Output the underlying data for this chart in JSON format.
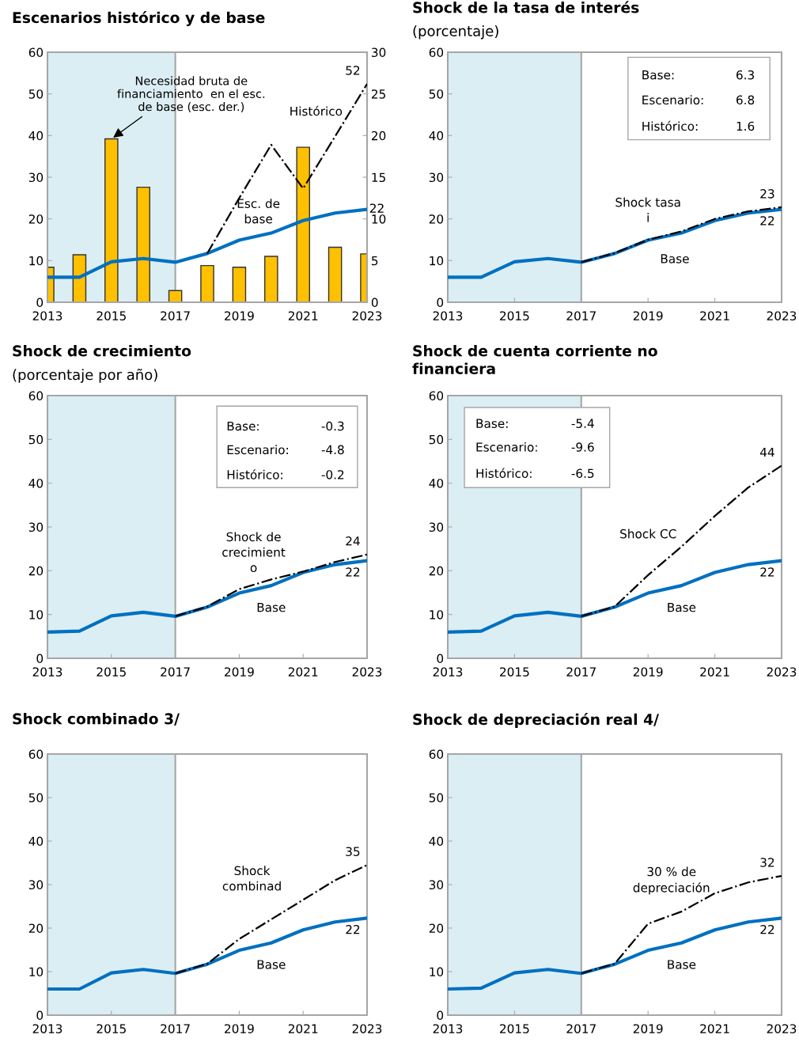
{
  "chart_data": [
    {
      "type": "line",
      "title": "Escenarios histórico y de base",
      "x": [
        2013,
        2014,
        2015,
        2016,
        2017,
        2018,
        2019,
        2020,
        2021,
        2022,
        2023
      ],
      "series": [
        {
          "type": "bar",
          "axis": "y2",
          "color": "#ffc000",
          "values": [
            4.2,
            5.7,
            19.6,
            13.8,
            1.4,
            4.4,
            4.2,
            5.5,
            18.6,
            6.6,
            5.8
          ]
        },
        {
          "color": "#0070c0",
          "line_style": "solid",
          "values": [
            6.0,
            6.0,
            9.7,
            10.5,
            9.6,
            11.7,
            14.9,
            16.6,
            19.6,
            21.4,
            22.3
          ],
          "value_labels": [
            null,
            null,
            null,
            null,
            null,
            null,
            null,
            null,
            null,
            null,
            "22"
          ]
        },
        {
          "color": "#000000",
          "line_style": "dashdot",
          "values": [
            null,
            null,
            null,
            null,
            null,
            11.7,
            25,
            37.8,
            27.3,
            39.8,
            52.4
          ],
          "value_labels": [
            null,
            null,
            null,
            null,
            null,
            null,
            null,
            null,
            null,
            null,
            "52"
          ]
        }
      ],
      "xlim": [
        2013,
        2023
      ],
      "xticks": [
        2013,
        2015,
        2017,
        2019,
        2021,
        2023
      ],
      "ylim": [
        0,
        60
      ],
      "yticks": [
        0,
        10,
        20,
        30,
        40,
        50,
        60
      ],
      "y2lim": [
        0,
        30
      ],
      "y2ticks": [
        0,
        5,
        10,
        15,
        20,
        25,
        30
      ],
      "bands": [
        {
          "axis": "x",
          "from": 2013,
          "to": 2017,
          "color": "#dbeef4"
        }
      ],
      "ref_lines": [
        {
          "axis": "x",
          "value": 2017,
          "color": "#a6a6a6"
        }
      ],
      "annotations": [
        {
          "text": "Necesidad bruta de\nfinanciamiento  en el esc.\nde base (esc. der.)",
          "x": 2015,
          "y": 39.2
        },
        "Histórico",
        "Esc. de\nbase"
      ]
    },
    {
      "type": "line",
      "title": "Shock de la tasa de interés",
      "subtitle": "(porcentaje)",
      "x": [
        2013,
        2014,
        2015,
        2016,
        2017,
        2018,
        2019,
        2020,
        2021,
        2022,
        2023
      ],
      "series": [
        {
          "color": "#0070c0",
          "line_style": "solid",
          "values": [
            6.0,
            6.0,
            9.7,
            10.5,
            9.6,
            11.7,
            14.9,
            16.6,
            19.6,
            21.4,
            22.3
          ],
          "value_labels": [
            null,
            null,
            null,
            null,
            null,
            null,
            null,
            null,
            null,
            null,
            "22"
          ]
        },
        {
          "color": "#000000",
          "line_style": "dashdot",
          "values": [
            null,
            null,
            null,
            null,
            9.6,
            11.8,
            15.0,
            17.0,
            20.0,
            21.8,
            22.8
          ],
          "value_labels": [
            null,
            null,
            null,
            null,
            null,
            null,
            null,
            null,
            null,
            null,
            "23"
          ]
        }
      ],
      "xlim": [
        2013,
        2023
      ],
      "xticks": [
        2013,
        2015,
        2017,
        2019,
        2021,
        2023
      ],
      "ylim": [
        0,
        60
      ],
      "yticks": [
        0,
        10,
        20,
        30,
        40,
        50,
        60
      ],
      "bands": [
        {
          "axis": "x",
          "from": 2013,
          "to": 2017,
          "color": "#dbeef4"
        }
      ],
      "ref_lines": [
        {
          "axis": "x",
          "value": 2017,
          "color": "#a6a6a6"
        }
      ],
      "annotations": [
        "Base:",
        "6.3",
        "Escenario:",
        "6.8",
        "Histórico:",
        "1.6",
        "Shock tasa\ni",
        "Base"
      ]
    },
    {
      "type": "line",
      "title": "Shock de crecimiento",
      "subtitle": "(porcentaje por año)",
      "x": [
        2013,
        2014,
        2015,
        2016,
        2017,
        2018,
        2019,
        2020,
        2021,
        2022,
        2023
      ],
      "series": [
        {
          "color": "#0070c0",
          "line_style": "solid",
          "values": [
            6.0,
            6.2,
            9.7,
            10.5,
            9.6,
            11.7,
            14.9,
            16.6,
            19.6,
            21.4,
            22.3
          ],
          "value_labels": [
            null,
            null,
            null,
            null,
            null,
            null,
            null,
            null,
            null,
            null,
            "22"
          ]
        },
        {
          "color": "#000000",
          "line_style": "dashdot",
          "values": [
            null,
            null,
            null,
            null,
            9.6,
            11.8,
            15.8,
            18.0,
            19.8,
            22.0,
            23.7
          ],
          "value_labels": [
            null,
            null,
            null,
            null,
            null,
            null,
            null,
            null,
            null,
            null,
            "24"
          ]
        }
      ],
      "xlim": [
        2013,
        2023
      ],
      "xticks": [
        2013,
        2015,
        2017,
        2019,
        2021,
        2023
      ],
      "ylim": [
        0,
        60
      ],
      "yticks": [
        0,
        10,
        20,
        30,
        40,
        50,
        60
      ],
      "bands": [
        {
          "axis": "x",
          "from": 2013,
          "to": 2017,
          "color": "#dbeef4"
        }
      ],
      "ref_lines": [
        {
          "axis": "x",
          "value": 2017,
          "color": "#a6a6a6"
        }
      ],
      "annotations": [
        "Base:",
        "-0.3",
        "Escenario:",
        "-4.8",
        "Histórico:",
        "-0.2",
        "Shock de\ncrecimient\no",
        "Base"
      ]
    },
    {
      "type": "line",
      "title": "Shock de cuenta corriente no\nfinanciera",
      "x": [
        2013,
        2014,
        2015,
        2016,
        2017,
        2018,
        2019,
        2020,
        2021,
        2022,
        2023
      ],
      "series": [
        {
          "color": "#0070c0",
          "line_style": "solid",
          "values": [
            6.0,
            6.2,
            9.7,
            10.5,
            9.6,
            11.7,
            14.9,
            16.6,
            19.6,
            21.4,
            22.3
          ],
          "value_labels": [
            null,
            null,
            null,
            null,
            null,
            null,
            null,
            null,
            null,
            null,
            "22"
          ]
        },
        {
          "color": "#000000",
          "line_style": "dashdot",
          "values": [
            null,
            null,
            null,
            null,
            9.6,
            11.8,
            19.0,
            25.5,
            32.5,
            39.0,
            44.0
          ],
          "value_labels": [
            null,
            null,
            null,
            null,
            null,
            null,
            null,
            null,
            null,
            null,
            "44"
          ]
        }
      ],
      "xlim": [
        2013,
        2023
      ],
      "xticks": [
        2013,
        2015,
        2017,
        2019,
        2021,
        2023
      ],
      "ylim": [
        0,
        60
      ],
      "yticks": [
        0,
        10,
        20,
        30,
        40,
        50,
        60
      ],
      "bands": [
        {
          "axis": "x",
          "from": 2013,
          "to": 2017,
          "color": "#dbeef4"
        }
      ],
      "ref_lines": [
        {
          "axis": "x",
          "value": 2017,
          "color": "#a6a6a6"
        }
      ],
      "annotations": [
        "Base:",
        "-5.4",
        "Escenario:",
        "-9.6",
        "Histórico:",
        "-6.5",
        "Shock CC",
        "Base"
      ]
    },
    {
      "type": "line",
      "title": "Shock combinado 3/",
      "x": [
        2013,
        2014,
        2015,
        2016,
        2017,
        2018,
        2019,
        2020,
        2021,
        2022,
        2023
      ],
      "series": [
        {
          "color": "#0070c0",
          "line_style": "solid",
          "values": [
            6.0,
            6.0,
            9.7,
            10.5,
            9.6,
            11.7,
            14.9,
            16.6,
            19.6,
            21.4,
            22.3
          ],
          "value_labels": [
            null,
            null,
            null,
            null,
            null,
            null,
            null,
            null,
            null,
            null,
            "22"
          ]
        },
        {
          "color": "#000000",
          "line_style": "dashdot",
          "values": [
            null,
            null,
            null,
            null,
            9.6,
            11.8,
            17.5,
            22.0,
            26.5,
            31.0,
            34.5
          ],
          "value_labels": [
            null,
            null,
            null,
            null,
            null,
            null,
            null,
            null,
            null,
            null,
            "35"
          ]
        }
      ],
      "xlim": [
        2013,
        2023
      ],
      "xticks": [
        2013,
        2015,
        2017,
        2019,
        2021,
        2023
      ],
      "ylim": [
        0,
        60
      ],
      "yticks": [
        0,
        10,
        20,
        30,
        40,
        50,
        60
      ],
      "bands": [
        {
          "axis": "x",
          "from": 2013,
          "to": 2017,
          "color": "#dbeef4"
        }
      ],
      "ref_lines": [
        {
          "axis": "x",
          "value": 2017,
          "color": "#a6a6a6"
        }
      ],
      "annotations": [
        "Shock\ncombinad",
        "Base"
      ]
    },
    {
      "type": "line",
      "title": "Shock de depreciación real 4/",
      "x": [
        2013,
        2014,
        2015,
        2016,
        2017,
        2018,
        2019,
        2020,
        2021,
        2022,
        2023
      ],
      "series": [
        {
          "color": "#0070c0",
          "line_style": "solid",
          "values": [
            6.0,
            6.2,
            9.7,
            10.5,
            9.6,
            11.7,
            14.9,
            16.6,
            19.6,
            21.4,
            22.3
          ],
          "value_labels": [
            null,
            null,
            null,
            null,
            null,
            null,
            null,
            null,
            null,
            null,
            "22"
          ]
        },
        {
          "color": "#000000",
          "line_style": "dashdot",
          "values": [
            null,
            null,
            null,
            null,
            9.6,
            11.8,
            21.0,
            23.8,
            28.0,
            30.5,
            32.0
          ],
          "value_labels": [
            null,
            null,
            null,
            null,
            null,
            null,
            null,
            null,
            null,
            null,
            "32"
          ]
        }
      ],
      "xlim": [
        2013,
        2023
      ],
      "xticks": [
        2013,
        2015,
        2017,
        2019,
        2021,
        2023
      ],
      "ylim": [
        0,
        60
      ],
      "yticks": [
        0,
        10,
        20,
        30,
        40,
        50,
        60
      ],
      "bands": [
        {
          "axis": "x",
          "from": 2013,
          "to": 2017,
          "color": "#dbeef4"
        }
      ],
      "ref_lines": [
        {
          "axis": "x",
          "value": 2017,
          "color": "#a6a6a6"
        }
      ],
      "annotations": [
        "30 % de\ndepreciación",
        "Base"
      ]
    }
  ]
}
